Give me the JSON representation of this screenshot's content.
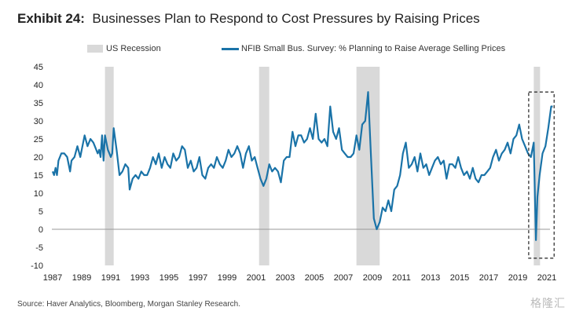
{
  "title_prefix": "Exhibit 24:",
  "title_text": "Businesses Plan to Respond to Cost Pressures by Raising Prices",
  "legend": {
    "recession": "US Recession",
    "series": "NFIB Small Bus. Survey: % Planning to Raise Average Selling Prices"
  },
  "source": "Source: Haver Analytics, Bloomberg, Morgan Stanley Research.",
  "watermark": "格隆汇",
  "colors": {
    "line": "#1a73a8",
    "recession": "#d9d9d9",
    "zero": "#999999",
    "highlight": "#333333"
  },
  "chart_data": {
    "type": "line",
    "title": "Businesses Plan to Respond to Cost Pressures by Raising Prices",
    "xlabel": "",
    "ylabel": "",
    "xlim": [
      1986.7,
      2021.6
    ],
    "ylim": [
      -10,
      45
    ],
    "yticks": [
      45,
      40,
      35,
      30,
      25,
      20,
      15,
      10,
      5,
      0,
      -5,
      -10
    ],
    "xticks": [
      "1987",
      "1989",
      "1991",
      "1993",
      "1995",
      "1997",
      "1999",
      "2001",
      "2003",
      "2005",
      "2007",
      "2009",
      "2011",
      "2013",
      "2015",
      "2017",
      "2019",
      "2021"
    ],
    "grid": false,
    "legend_position": "top",
    "recessions": [
      [
        1990.6,
        1991.2
      ],
      [
        2001.2,
        2001.9
      ],
      [
        2007.9,
        2009.5
      ],
      [
        2020.1,
        2020.4
      ]
    ],
    "highlight_box": {
      "x": [
        2019.75,
        2021.5
      ],
      "y": [
        -8,
        38
      ]
    },
    "series": [
      {
        "name": "NFIB Small Bus. Survey: % Planning to Raise Average Selling Prices",
        "x": [
          1987.0,
          1987.1,
          1987.2,
          1987.3,
          1987.4,
          1987.6,
          1987.8,
          1988.0,
          1988.2,
          1988.3,
          1988.5,
          1988.7,
          1988.9,
          1989.0,
          1989.2,
          1989.4,
          1989.6,
          1989.8,
          1989.9,
          1990.1,
          1990.2,
          1990.3,
          1990.4,
          1990.5,
          1990.6,
          1990.8,
          1990.9,
          1991.0,
          1991.1,
          1991.2,
          1991.4,
          1991.6,
          1991.8,
          1992.0,
          1992.2,
          1992.3,
          1992.5,
          1992.7,
          1992.9,
          1993.1,
          1993.3,
          1993.5,
          1993.7,
          1993.9,
          1994.1,
          1994.3,
          1994.5,
          1994.7,
          1994.9,
          1995.1,
          1995.3,
          1995.5,
          1995.7,
          1995.9,
          1996.1,
          1996.3,
          1996.5,
          1996.7,
          1996.9,
          1997.1,
          1997.3,
          1997.5,
          1997.7,
          1997.9,
          1998.1,
          1998.3,
          1998.5,
          1998.7,
          1998.9,
          1999.1,
          1999.3,
          1999.5,
          1999.7,
          1999.9,
          2000.1,
          2000.3,
          2000.5,
          2000.7,
          2000.9,
          2001.1,
          2001.3,
          2001.5,
          2001.7,
          2001.9,
          2002.1,
          2002.3,
          2002.5,
          2002.7,
          2002.9,
          2003.1,
          2003.3,
          2003.5,
          2003.7,
          2003.9,
          2004.1,
          2004.3,
          2004.5,
          2004.7,
          2004.9,
          2005.1,
          2005.3,
          2005.5,
          2005.7,
          2005.9,
          2006.1,
          2006.3,
          2006.5,
          2006.7,
          2006.9,
          2007.1,
          2007.3,
          2007.5,
          2007.7,
          2007.9,
          2008.1,
          2008.3,
          2008.5,
          2008.7,
          2008.9,
          2009.1,
          2009.3,
          2009.5,
          2009.7,
          2009.9,
          2010.1,
          2010.3,
          2010.5,
          2010.7,
          2010.9,
          2011.1,
          2011.3,
          2011.5,
          2011.7,
          2011.9,
          2012.1,
          2012.3,
          2012.5,
          2012.7,
          2012.9,
          2013.1,
          2013.3,
          2013.5,
          2013.7,
          2013.9,
          2014.1,
          2014.3,
          2014.5,
          2014.7,
          2014.9,
          2015.1,
          2015.3,
          2015.5,
          2015.7,
          2015.9,
          2016.1,
          2016.3,
          2016.5,
          2016.7,
          2016.9,
          2017.1,
          2017.3,
          2017.5,
          2017.7,
          2017.9,
          2018.1,
          2018.3,
          2018.5,
          2018.7,
          2018.9,
          2019.1,
          2019.3,
          2019.5,
          2019.7,
          2019.9,
          2020.1,
          2020.25,
          2020.35,
          2020.5,
          2020.7,
          2020.9,
          2021.1,
          2021.3,
          2021.4
        ],
        "values": [
          16,
          15,
          17,
          15,
          19,
          21,
          21,
          20,
          16,
          19,
          20,
          23,
          20,
          22,
          26,
          23,
          25,
          24,
          23,
          21,
          22,
          20,
          26,
          19,
          26,
          22,
          21,
          20,
          21,
          28,
          22,
          15,
          16,
          18,
          17,
          11,
          14,
          15,
          14,
          16,
          15,
          15,
          17,
          20,
          18,
          21,
          17,
          20,
          18,
          17,
          21,
          19,
          20,
          23,
          22,
          17,
          19,
          16,
          17,
          20,
          15,
          14,
          17,
          18,
          17,
          20,
          18,
          17,
          19,
          22,
          20,
          21,
          23,
          21,
          17,
          21,
          23,
          19,
          20,
          17,
          14,
          12,
          14,
          18,
          16,
          17,
          16,
          13,
          19,
          20,
          20,
          27,
          23,
          26,
          26,
          24,
          25,
          28,
          25,
          32,
          25,
          24,
          25,
          23,
          34,
          27,
          25,
          28,
          22,
          21,
          20,
          20,
          21,
          26,
          22,
          29,
          30,
          38,
          20,
          3,
          0,
          2,
          6,
          5,
          8,
          5,
          11,
          12,
          15,
          21,
          24,
          17,
          18,
          20,
          16,
          21,
          17,
          18,
          15,
          17,
          19,
          20,
          18,
          19,
          14,
          18,
          18,
          17,
          20,
          17,
          15,
          16,
          14,
          17,
          14,
          13,
          15,
          15,
          16,
          17,
          20,
          22,
          19,
          21,
          22,
          24,
          21,
          25,
          26,
          29,
          25,
          23,
          21,
          20,
          24,
          -3,
          9,
          15,
          21,
          23,
          28,
          34,
          34
        ]
      }
    ]
  }
}
